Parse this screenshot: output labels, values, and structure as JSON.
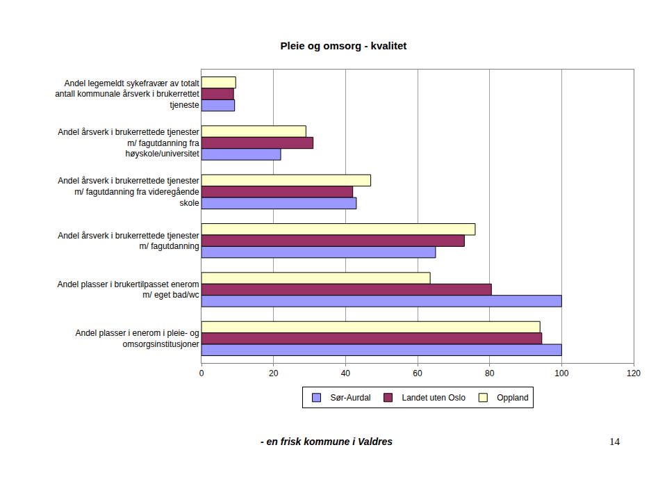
{
  "chart_data": {
    "type": "bar",
    "title": "Pleie og omsorg - kvalitet",
    "orientation": "horizontal",
    "categories": [
      "Andel legemeldt sykefravær av totalt\nantall kommunale årsverk i brukerrettet\ntjeneste",
      "Andel årsverk i brukerrettede tjenester\nm/ fagutdanning fra\nhøyskole/universitet",
      "Andel årsverk i brukerrettede tjenester\nm/ fagutdanning fra videregående\nskole",
      "Andel årsverk i brukerrettede tjenester\nm/ fagutdanning",
      "Andel plasser i brukertilpasset enerom\nm/ eget bad/wc",
      "Andel plasser i enerom i pleie- og\nomsorgsinstitusjoner"
    ],
    "series": [
      {
        "name": "Sør-Aurdal",
        "color": "#9999ff",
        "values": [
          9.2,
          22,
          43,
          65,
          100,
          100
        ]
      },
      {
        "name": "Landet uten Oslo",
        "color": "#993366",
        "values": [
          8.9,
          31,
          42,
          73,
          80.5,
          94.5
        ]
      },
      {
        "name": "Oppland",
        "color": "#ffffcc",
        "values": [
          9.5,
          29,
          47,
          76,
          63.5,
          94
        ]
      }
    ],
    "xlim": [
      0,
      120
    ],
    "xticks": [
      0,
      20,
      40,
      60,
      80,
      100,
      120
    ],
    "grid": true,
    "legend": "bottom",
    "annotations": [
      {
        "text": "- en frisk kommune i Valdres"
      },
      {
        "text": "14"
      }
    ]
  }
}
